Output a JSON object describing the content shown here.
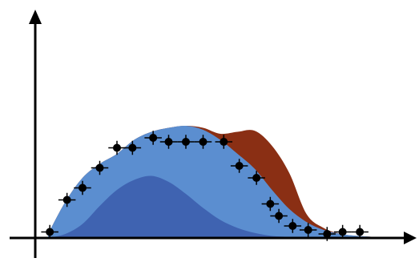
{
  "chart_data": {
    "type": "area",
    "title": "",
    "xlabel": "",
    "ylabel": "",
    "xlim": [
      0,
      20
    ],
    "ylim": [
      0,
      7.2
    ],
    "grid": false,
    "legend": "none",
    "axis_ticks": false,
    "colors": {
      "red_component": "#8a2f14",
      "light_blue_component": "#5b8ed0",
      "dark_blue_component": "#3f63b1",
      "points": "#000000",
      "axes": "#000000"
    },
    "series": [
      {
        "kind": "stacked-area",
        "color": "#3f63b1",
        "x": [
          0,
          1,
          2,
          3,
          4,
          5,
          6,
          7,
          8,
          9,
          10,
          11,
          12,
          13,
          14,
          15,
          16,
          17,
          18,
          19,
          20
        ],
        "y": [
          0,
          0.2,
          0.7,
          1.6,
          2.4,
          2.9,
          3.1,
          2.8,
          2.2,
          1.5,
          0.9,
          0.5,
          0.25,
          0.1,
          0.05,
          0,
          0,
          0,
          0,
          0,
          0
        ]
      },
      {
        "kind": "stacked-area",
        "color": "#5b8ed0",
        "x": [
          0,
          1,
          2,
          3,
          4,
          5,
          6,
          7,
          8,
          9,
          10,
          11,
          12,
          13,
          14,
          15,
          16,
          17,
          18,
          19,
          20
        ],
        "y": [
          0.2,
          1.6,
          2.3,
          2.1,
          1.8,
          2.0,
          2.2,
          2.7,
          3.4,
          3.9,
          4.0,
          3.7,
          3.2,
          2.3,
          1.4,
          0.8,
          0.4,
          0.2,
          0.1,
          0.05,
          0
        ]
      },
      {
        "kind": "stacked-area",
        "color": "#8a2f14",
        "x": [
          0,
          1,
          2,
          3,
          4,
          5,
          6,
          7,
          8,
          9,
          10,
          11,
          12,
          13,
          14,
          15,
          16,
          17,
          18,
          19,
          20
        ],
        "y": [
          0,
          0,
          0,
          0,
          0,
          0,
          0,
          0,
          0,
          0.1,
          0.3,
          1.1,
          1.9,
          2.2,
          1.8,
          0.4,
          0.1,
          0,
          0,
          0,
          0
        ]
      },
      {
        "kind": "points-with-error-bars",
        "color": "#000000",
        "x": [
          0.1,
          1.1,
          2.0,
          3.0,
          4.0,
          4.9,
          6.1,
          7.0,
          8.0,
          9.0,
          10.2,
          11.1,
          12.1,
          12.9,
          13.4,
          14.2,
          15.1,
          16.2,
          17.1,
          18.1
        ],
        "y": [
          0.3,
          1.9,
          2.5,
          3.5,
          4.5,
          4.5,
          5.0,
          4.8,
          4.8,
          4.8,
          4.8,
          3.6,
          3.0,
          1.7,
          1.1,
          0.6,
          0.4,
          0.2,
          0.3,
          0.3
        ],
        "xerr": 0.5,
        "yerr": 0.35
      }
    ]
  }
}
